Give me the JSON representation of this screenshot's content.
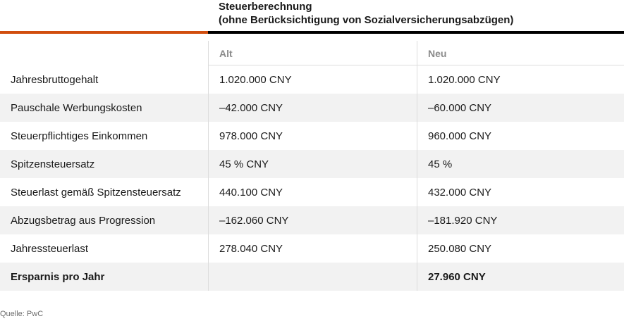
{
  "title": {
    "line1": "Steuerberechnung",
    "line2": "(ohne Berücksichtigung von Sozialversicherungsabzügen)"
  },
  "colors": {
    "accent_orange": "#d14e0f",
    "rule_black": "#000000",
    "stripe": "#f2f2f2"
  },
  "table": {
    "headers": {
      "label": "",
      "alt": "Alt",
      "neu": "Neu"
    },
    "rows": [
      {
        "label": "Jahresbruttogehalt",
        "alt": "1.020.000 CNY",
        "neu": "1.020.000 CNY"
      },
      {
        "label": "Pauschale Werbungskosten",
        "alt": "–42.000 CNY",
        "neu": "–60.000 CNY"
      },
      {
        "label": "Steuerpflichtiges Einkommen",
        "alt": "978.000 CNY",
        "neu": "960.000 CNY"
      },
      {
        "label": "Spitzensteuersatz",
        "alt": "45 % CNY",
        "neu": "45 %"
      },
      {
        "label": "Steuerlast gemäß Spitzensteuersatz",
        "alt": "440.100 CNY",
        "neu": "432.000 CNY"
      },
      {
        "label": "Abzugsbetrag aus Progression",
        "alt": "–162.060 CNY",
        "neu": "–181.920 CNY"
      },
      {
        "label": "Jahressteuerlast",
        "alt": "278.040 CNY",
        "neu": "250.080 CNY"
      },
      {
        "label": "Ersparnis pro Jahr",
        "alt": "",
        "neu": "27.960 CNY"
      }
    ]
  },
  "source": "Quelle: PwC"
}
